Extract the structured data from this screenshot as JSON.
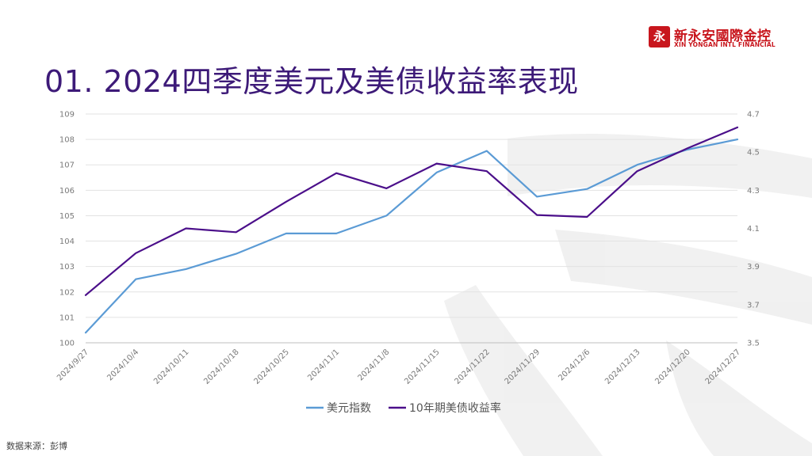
{
  "brand": {
    "mark": "永",
    "name_cn": "新永安國際金控",
    "name_en": "XIN YONGAN INTL FINANCIAL",
    "color": "#c8161d"
  },
  "page_title": "01. 2024四季度美元及美债收益率表现",
  "source_note": "数据来源：彭博",
  "chart_data": {
    "type": "line",
    "title": "",
    "xlabel": "",
    "ylabel": "",
    "x": [
      "2024/9/27",
      "2024/10/4",
      "2024/10/11",
      "2024/10/18",
      "2024/10/25",
      "2024/11/1",
      "2024/11/8",
      "2024/11/15",
      "2024/11/22",
      "2024/11/29",
      "2024/12/6",
      "2024/12/13",
      "2024/12/20",
      "2024/12/27"
    ],
    "y_left": {
      "min": 100,
      "max": 109,
      "ticks": [
        "100",
        "101",
        "102",
        "103",
        "104",
        "105",
        "106",
        "107",
        "108",
        "109"
      ]
    },
    "y_right": {
      "min": 3.5,
      "max": 4.7,
      "ticks": [
        "3.5",
        "3.7",
        "3.9",
        "4.1",
        "4.3",
        "4.5",
        "4.7"
      ]
    },
    "grid": true,
    "legend_position": "bottom",
    "series": [
      {
        "name": "美元指数",
        "axis": "left",
        "color": "#5b9bd5",
        "values": [
          100.4,
          102.5,
          102.9,
          103.5,
          104.3,
          104.3,
          105.0,
          106.7,
          107.55,
          105.75,
          106.05,
          107.0,
          107.6,
          108.0
        ]
      },
      {
        "name": "10年期美债收益率",
        "axis": "right",
        "color": "#4b0f8a",
        "values": [
          3.75,
          3.97,
          4.1,
          4.08,
          4.24,
          4.39,
          4.31,
          4.44,
          4.4,
          4.17,
          4.16,
          4.4,
          4.52,
          4.63
        ]
      }
    ]
  }
}
